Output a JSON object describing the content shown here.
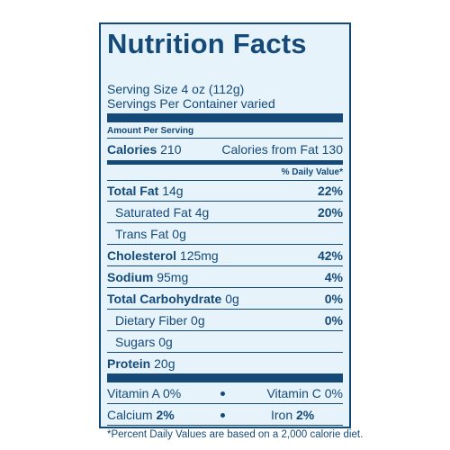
{
  "title": "Nutrition Facts",
  "serving_size": "Serving Size 4 oz (112g)",
  "servings_per_container": "Servings Per Container varied",
  "amount_per_serving": "Amount Per Serving",
  "calories": {
    "label": "Calories",
    "value": "210"
  },
  "calories_from_fat": "Calories from Fat 130",
  "daily_value_header": "% Daily Value*",
  "nutrients": [
    {
      "label": "Total Fat",
      "amount": "14g",
      "dv": "22%"
    },
    {
      "label": "Saturated Fat",
      "amount": "4g",
      "dv": "20%"
    },
    {
      "label": "Trans Fat",
      "amount": "0g",
      "dv": ""
    },
    {
      "label": "Cholesterol",
      "amount": "125mg",
      "dv": "42%"
    },
    {
      "label": "Sodium",
      "amount": "95mg",
      "dv": "4%"
    },
    {
      "label": "Total Carbohydrate",
      "amount": "0g",
      "dv": "0%"
    },
    {
      "label": "Dietary Fiber",
      "amount": "0g",
      "dv": "0%"
    },
    {
      "label": "Sugars",
      "amount": "0g",
      "dv": ""
    },
    {
      "label": "Protein",
      "amount": "20g",
      "dv": ""
    }
  ],
  "vitamins": [
    {
      "label": "Vitamin A",
      "value": "0%"
    },
    {
      "label": "Vitamin C",
      "value": "0%"
    },
    {
      "label": "Calcium",
      "value": "2%"
    },
    {
      "label": "Iron",
      "value": "2%"
    }
  ],
  "footnote": "*Percent Daily Values are based on a 2,000 calorie diet.",
  "colors": {
    "text": "#154a78",
    "background": "#e6f3fb"
  }
}
